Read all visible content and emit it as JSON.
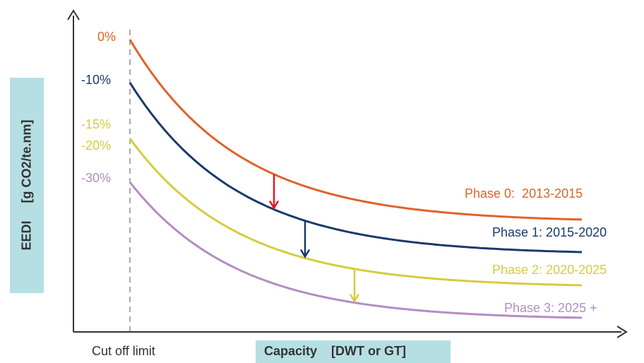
{
  "chart_data": {
    "type": "line",
    "title": "",
    "ylabel": "EEDI     [g CO2/te.nm]",
    "xlabel": "Capacity    [DWT or GT]",
    "cutoff_label": "Cut off limit",
    "reduction_labels": [
      "0%",
      "-10%",
      "-15%",
      "-20%",
      "-30%"
    ],
    "series": [
      {
        "name": "Phase 0:  2013-2015",
        "reduction": "0%",
        "color": "#e0622a"
      },
      {
        "name": "Phase 1: 2015-2020",
        "reduction": "-10%",
        "color": "#1b3a6b"
      },
      {
        "name": "Phase 2: 2020-2025",
        "reduction": "-20%",
        "color": "#d6cc3d"
      },
      {
        "name": "Phase 3: 2025 +",
        "reduction": "-30%",
        "color": "#b48cc4"
      }
    ],
    "reduction_arrows": [
      {
        "from": "Phase 0:  2013-2015",
        "to": "Phase 1: 2015-2020",
        "color": "#e8161f"
      },
      {
        "from": "Phase 1: 2015-2020",
        "to": "Phase 2: 2020-2025",
        "color": "#1b3a6b"
      },
      {
        "from": "Phase 2: 2020-2025",
        "to": "Phase 3: 2025 +",
        "color": "#d6cc3d"
      }
    ],
    "grid": false,
    "colors": {
      "label_15": "#d6cc3d",
      "axis": "#333333",
      "cutoff_line": "#aaaaaa",
      "label_box": "#b6dfe3"
    }
  }
}
